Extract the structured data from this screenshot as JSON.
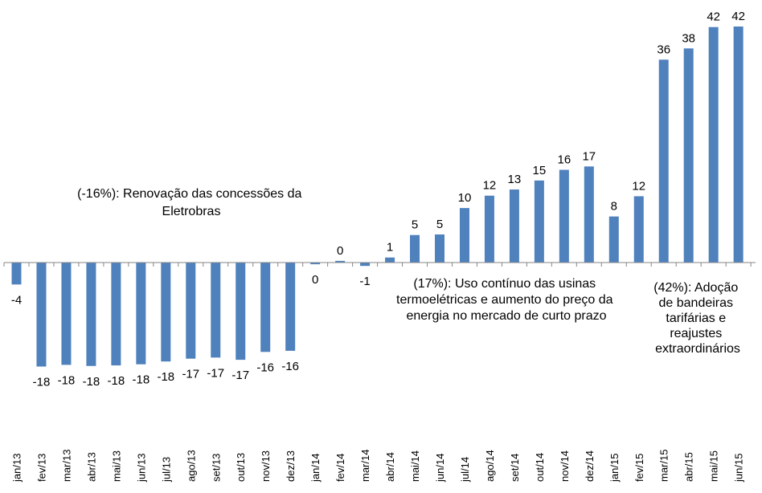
{
  "chart_data": {
    "type": "bar",
    "categories": [
      "jan/13",
      "fev/13",
      "mar/13",
      "abr/13",
      "mai/13",
      "jun/13",
      "jul/13",
      "ago/13",
      "set/13",
      "out/13",
      "nov/13",
      "dez/13",
      "jan/14",
      "fev/14",
      "mar/14",
      "abr/14",
      "mai/14",
      "jun/14",
      "jul/14",
      "ago/14",
      "set/14",
      "out/14",
      "nov/14",
      "dez/14",
      "jan/15",
      "fev/15",
      "mar/15",
      "abr/15",
      "mai/15",
      "jun/15"
    ],
    "values": [
      -3.9,
      -18.5,
      -18.2,
      -18.4,
      -18.3,
      -18.1,
      -17.6,
      -17.1,
      -16.9,
      -17.3,
      -15.9,
      -15.7,
      -0.3,
      0.3,
      -0.6,
      0.9,
      4.9,
      5.0,
      9.7,
      11.9,
      13.0,
      14.6,
      16.5,
      17.1,
      8.2,
      11.8,
      36.1,
      38.1,
      41.9,
      42.0
    ],
    "data_labels": [
      "-4",
      "-18",
      "-18",
      "-18",
      "-18",
      "-18",
      "-18",
      "-17",
      "-17",
      "-17",
      "-16",
      "-16",
      "0",
      "0",
      "-1",
      "1",
      "5",
      "5",
      "10",
      "12",
      "13",
      "15",
      "16",
      "17",
      "8",
      "12",
      "36",
      "38",
      "42",
      "42"
    ],
    "ylim": [
      -20,
      43
    ],
    "grid": false,
    "bar_color": "#4f81bd",
    "annotations": [
      {
        "lines": [
          "(-16%): Renovação das concessões da",
          "Eletrobras"
        ]
      },
      {
        "lines": [
          "(17%): Uso contínuo das usinas",
          "termoelétricas e aumento do preço da",
          "energia no mercado de curto prazo"
        ]
      },
      {
        "lines": [
          "(42%): Adoção",
          "de bandeiras",
          "tarifárias e",
          "reajustes",
          "extraordinários"
        ]
      }
    ]
  }
}
